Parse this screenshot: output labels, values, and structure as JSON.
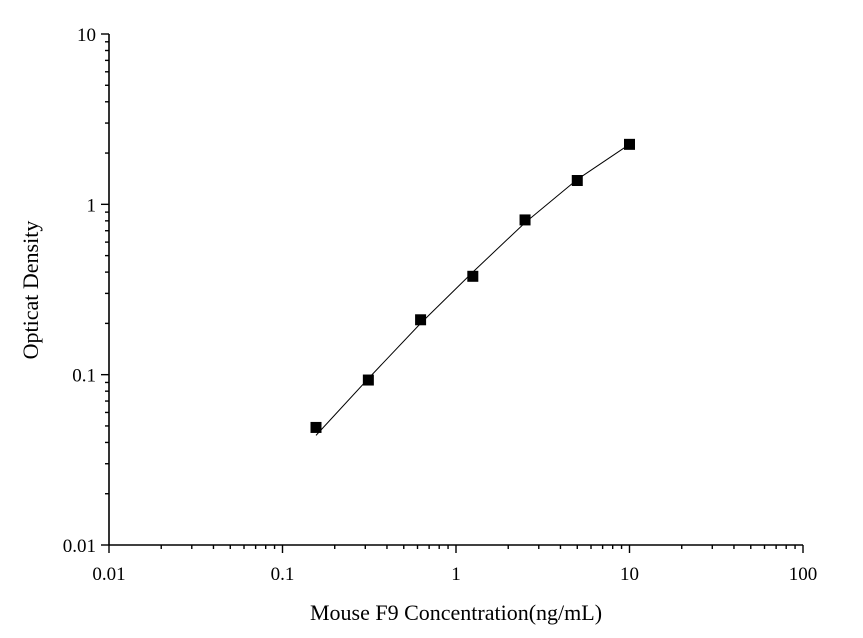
{
  "chart_data": {
    "type": "scatter",
    "title": "",
    "xlabel": "Mouse F9  Concentration(ng/mL)",
    "ylabel": "Opticat Density",
    "xscale": "log",
    "yscale": "log",
    "xlim": [
      0.01,
      100
    ],
    "ylim": [
      0.01,
      10
    ],
    "x_tick_labels": [
      "0.01",
      "0.1",
      "1",
      "10",
      "100"
    ],
    "y_tick_labels": [
      "0.01",
      "0.1",
      "1",
      "10"
    ],
    "grid": false,
    "legend": "none",
    "marker_color": "#000000",
    "series": [
      {
        "x": [
          0.156,
          0.3125,
          0.625,
          1.25,
          2.5,
          5,
          10
        ],
        "y": [
          0.049,
          0.093,
          0.21,
          0.378,
          0.81,
          1.38,
          2.25
        ]
      }
    ],
    "fit_line": {
      "x": [
        0.156,
        0.3125,
        0.625,
        1.25,
        2.5,
        5,
        10
      ],
      "y": [
        0.044,
        0.095,
        0.2,
        0.4,
        0.78,
        1.4,
        2.25
      ]
    }
  }
}
